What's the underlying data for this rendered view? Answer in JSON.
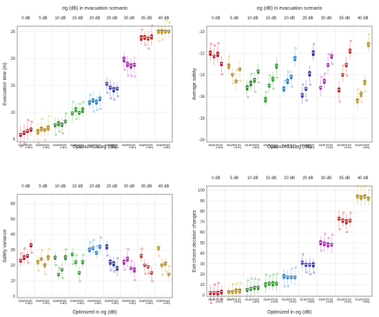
{
  "colors": {
    "groups": [
      "#c0001a",
      "#c89a10",
      "#2f8a2f",
      "#1fa81f",
      "#1c8ad6",
      "#2a2aa8",
      "#b21ab8",
      "#c02020",
      "#c8a018",
      "#555555"
    ]
  },
  "chart_data": [
    {
      "type": "boxplot",
      "title": "σg (dB) in evacuation scenario",
      "xlabel": "Optimized in σg (dB)",
      "ylabel": "Evacuation time (m)",
      "ylim": [
        4.5,
        26
      ],
      "yticks": [
        5,
        10,
        15,
        20,
        25
      ],
      "group_labels": [
        "0 dB",
        "5 dB",
        "10 dB",
        "15 dB",
        "20 dB",
        "25 dB",
        "30 dB",
        "35 dB",
        "40 dB"
      ],
      "x_tick_labels": [
        "0",
        "5",
        "10",
        "20"
      ],
      "grid": true,
      "series": [
        {
          "group": "0 dB",
          "values": [
            5.8,
            6.2,
            6.5,
            6.8
          ]
        },
        {
          "group": "5 dB",
          "values": [
            6.4,
            6.9,
            6.7,
            7.1
          ]
        },
        {
          "group": "10 dB",
          "values": [
            7.6,
            7.9,
            7.7,
            8.3
          ]
        },
        {
          "group": "15 dB",
          "values": [
            9.8,
            10.5,
            9.9,
            10.4
          ]
        },
        {
          "group": "20 dB",
          "values": [
            11.8,
            12.2,
            11.9,
            12.5
          ]
        },
        {
          "group": "25 dB",
          "values": [
            15.3,
            14.6,
            14.2,
            14.4
          ]
        },
        {
          "group": "30 dB",
          "values": [
            19.8,
            18.9,
            18.6,
            18.8
          ]
        },
        {
          "group": "35 dB",
          "values": [
            23.8,
            23.9,
            23.7,
            24.0
          ]
        },
        {
          "group": "40 dB",
          "values": [
            25.0,
            25.0,
            25.0,
            25.0
          ]
        }
      ]
    },
    {
      "type": "boxplot",
      "title": "σg (dB) in evacuation scenario",
      "xlabel": "Optimized in σg (dB)",
      "ylabel": "Average safety",
      "ylim": [
        -20.2,
        -9.5
      ],
      "yticks": [
        -20,
        -18,
        -16,
        -14,
        -12,
        -10
      ],
      "group_labels": [
        "0 dB",
        "5 dB",
        "10 dB",
        "15 dB",
        "20 dB",
        "25 dB",
        "30 dB",
        "35 dB",
        "40 dB"
      ],
      "x_tick_labels": [
        "0",
        "5",
        "10",
        "20"
      ],
      "grid": true,
      "series": [
        {
          "group": "0 dB",
          "values": [
            -12.0,
            -12.3,
            -12.1,
            -13.0
          ]
        },
        {
          "group": "5 dB",
          "values": [
            -13.2,
            -14.0,
            -14.6,
            -13.5
          ]
        },
        {
          "group": "10 dB",
          "values": [
            -15.2,
            -14.8,
            -14.5,
            -13.7
          ]
        },
        {
          "group": "15 dB",
          "values": [
            -16.3,
            -15.0,
            -14.4,
            -13.2
          ]
        },
        {
          "group": "20 dB",
          "values": [
            -15.3,
            -14.6,
            -14.2,
            -12.5
          ]
        },
        {
          "group": "25 dB",
          "values": [
            -15.9,
            -15.3,
            -13.9,
            -12.0
          ]
        },
        {
          "group": "30 dB",
          "values": [
            -15.2,
            -14.6,
            -13.1,
            -12.3
          ]
        },
        {
          "group": "35 dB",
          "values": [
            -15.4,
            -14.0,
            -13.1,
            -11.8
          ]
        },
        {
          "group": "40 dB",
          "values": [
            -16.4,
            -15.8,
            -14.7,
            -11.2
          ]
        }
      ]
    },
    {
      "type": "boxplot",
      "title": "",
      "xlabel": "Optimized in σg (dB)",
      "ylabel": "Safety variance",
      "ylim": [
        -1,
        66
      ],
      "yticks": [
        0,
        10,
        20,
        30,
        40,
        50,
        60
      ],
      "group_labels": [
        "0 dB",
        "5 dB",
        "10 dB",
        "15 dB",
        "20 dB",
        "25 dB",
        "30 dB",
        "35 dB",
        "40 dB"
      ],
      "x_tick_labels": [
        "0",
        "5",
        "10",
        "20"
      ],
      "grid": true,
      "series": [
        {
          "group": "0 dB",
          "values": [
            23,
            25,
            26,
            33
          ]
        },
        {
          "group": "5 dB",
          "values": [
            22,
            24,
            20,
            25
          ]
        },
        {
          "group": "10 dB",
          "values": [
            25,
            14,
            17,
            25
          ]
        },
        {
          "group": "15 dB",
          "values": [
            27,
            22,
            15,
            22
          ]
        },
        {
          "group": "20 dB",
          "values": [
            30,
            31,
            28,
            32
          ]
        },
        {
          "group": "25 dB",
          "values": [
            32,
            22,
            21,
            18
          ]
        },
        {
          "group": "30 dB",
          "values": [
            22,
            24,
            18,
            17
          ]
        },
        {
          "group": "35 dB",
          "values": [
            26,
            20,
            19,
            15
          ]
        },
        {
          "group": "40 dB",
          "values": [
            31,
            20,
            21,
            14
          ]
        }
      ]
    },
    {
      "type": "boxplot",
      "title": "",
      "xlabel": "Optimized in σg (dB)",
      "ylabel": "Exit-choice decision changes",
      "ylim": [
        -1,
        104
      ],
      "yticks": [
        0,
        10,
        20,
        30,
        40,
        50,
        60,
        70,
        80,
        90,
        100
      ],
      "group_labels": [
        "0 dB",
        "5 dB",
        "10 dB",
        "15 dB",
        "20 dB",
        "25 dB",
        "30 dB",
        "35 dB",
        "40 dB"
      ],
      "x_tick_labels": [
        "0",
        "5",
        "10",
        "20"
      ],
      "grid": true,
      "series": [
        {
          "group": "0 dB",
          "values": [
            2,
            2,
            2,
            3
          ]
        },
        {
          "group": "5 dB",
          "values": [
            3,
            3,
            4,
            4
          ]
        },
        {
          "group": "10 dB",
          "values": [
            5,
            6,
            7,
            7
          ]
        },
        {
          "group": "15 dB",
          "values": [
            10,
            11,
            11,
            11
          ]
        },
        {
          "group": "20 dB",
          "values": [
            18,
            17,
            17,
            17
          ]
        },
        {
          "group": "25 dB",
          "values": [
            31,
            29,
            29,
            29
          ]
        },
        {
          "group": "30 dB",
          "values": [
            50,
            49,
            48,
            48
          ]
        },
        {
          "group": "35 dB",
          "values": [
            73,
            71,
            70,
            71
          ]
        },
        {
          "group": "40 dB",
          "values": [
            94,
            93,
            94,
            92
          ]
        }
      ]
    }
  ]
}
